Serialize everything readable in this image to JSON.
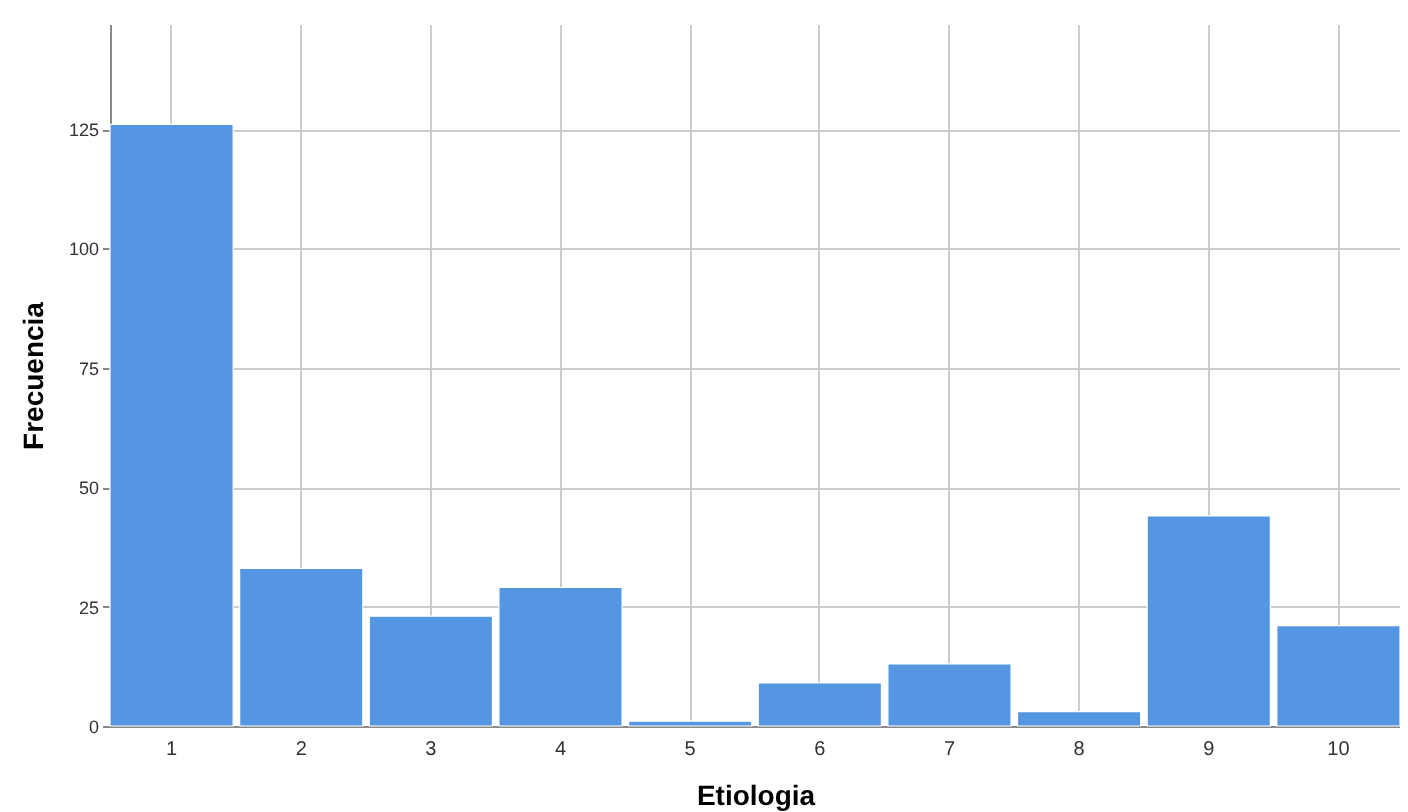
{
  "chart_data": {
    "type": "bar",
    "xlabel": "Etiologia",
    "ylabel": "Frecuencia",
    "categories": [
      "1",
      "2",
      "3",
      "4",
      "5",
      "6",
      "7",
      "8",
      "9",
      "10"
    ],
    "values": [
      126,
      33,
      23,
      29,
      1,
      9,
      13,
      3,
      44,
      21
    ],
    "color": "#5596e3",
    "ylim": [
      0,
      147
    ],
    "yticks": [
      0,
      25,
      50,
      75,
      100,
      125
    ],
    "grid": true
  }
}
